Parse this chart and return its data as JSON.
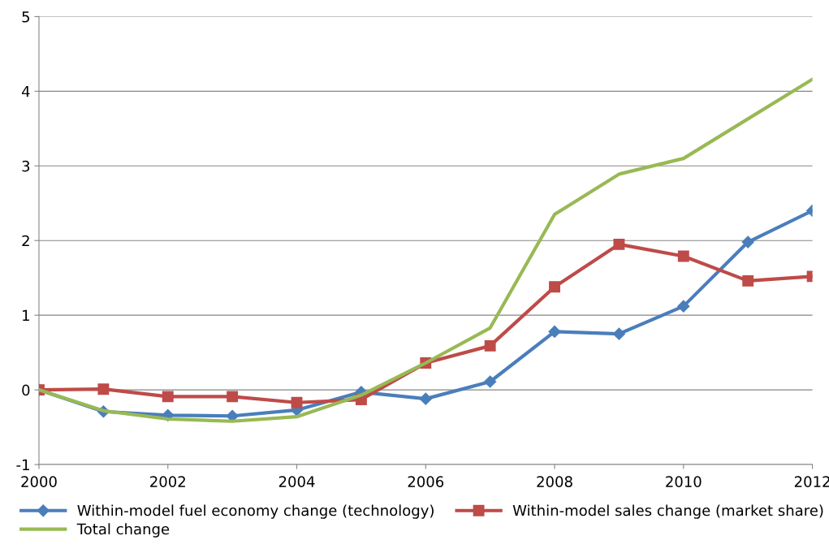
{
  "chart_data": {
    "type": "line",
    "x": [
      2000,
      2001,
      2002,
      2003,
      2004,
      2005,
      2006,
      2007,
      2008,
      2009,
      2010,
      2011,
      2012
    ],
    "series": [
      {
        "name": "Within-model fuel economy change (technology)",
        "color": "#4a7ebb",
        "marker": "diamond",
        "values": [
          0,
          -0.29,
          -0.34,
          -0.35,
          -0.27,
          -0.03,
          -0.12,
          0.11,
          0.78,
          0.75,
          1.12,
          1.98,
          2.4
        ]
      },
      {
        "name": "Within-model sales change (market share)",
        "color": "#be4b48",
        "marker": "square",
        "values": [
          0,
          0.01,
          -0.09,
          -0.09,
          -0.17,
          -0.13,
          0.36,
          0.59,
          1.38,
          1.95,
          1.79,
          1.46,
          1.52
        ]
      },
      {
        "name": "Total change",
        "color": "#98b954",
        "marker": "none",
        "values": [
          0,
          -0.28,
          -0.39,
          -0.42,
          -0.36,
          -0.07,
          0.36,
          0.83,
          2.35,
          2.89,
          3.1,
          3.63,
          4.16
        ]
      }
    ],
    "xlim": [
      2000,
      2012
    ],
    "xticks": [
      2000,
      2002,
      2004,
      2006,
      2008,
      2010,
      2012
    ],
    "ylim": [
      -1,
      5
    ],
    "yticks": [
      -1,
      0,
      1,
      2,
      3,
      4,
      5
    ],
    "grid": "y",
    "legend": "bottom",
    "line_style": "solid"
  }
}
